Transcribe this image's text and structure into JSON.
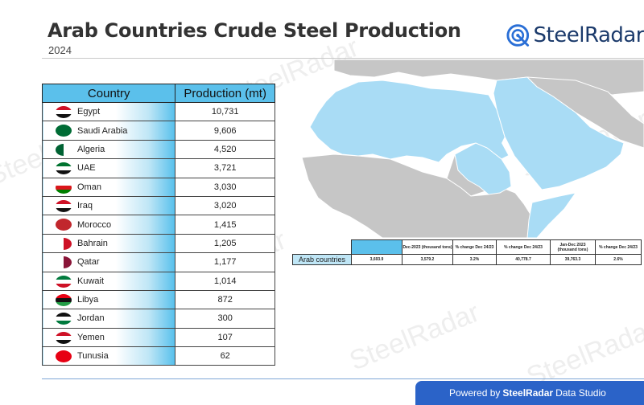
{
  "header": {
    "title": "Arab Countries Crude Steel Production",
    "subtitle": "2024",
    "brand": "SteelRadar",
    "watermark": "SteelRadar"
  },
  "table": {
    "col_country": "Country",
    "col_production": "Production (mt)"
  },
  "chart_data": {
    "type": "table",
    "title": "Arab Countries Crude Steel Production",
    "columns": [
      "Country",
      "Production (mt)"
    ],
    "rows": [
      {
        "country": "Egypt",
        "production": "10,731",
        "flag": "egypt-flag-icon"
      },
      {
        "country": "Saudi Arabia",
        "production": "9,606",
        "flag": "saudi-arabia-flag-icon"
      },
      {
        "country": "Algeria",
        "production": "4,520",
        "flag": "algeria-flag-icon"
      },
      {
        "country": "UAE",
        "production": "3,721",
        "flag": "uae-flag-icon"
      },
      {
        "country": "Oman",
        "production": "3,030",
        "flag": "oman-flag-icon"
      },
      {
        "country": "Iraq",
        "production": "3,020",
        "flag": "iraq-flag-icon"
      },
      {
        "country": "Morocco",
        "production": "1,415",
        "flag": "morocco-flag-icon"
      },
      {
        "country": "Bahrain",
        "production": "1,205",
        "flag": "bahrain-flag-icon"
      },
      {
        "country": "Qatar",
        "production": "1,177",
        "flag": "qatar-flag-icon"
      },
      {
        "country": "Kuwait",
        "production": "1,014",
        "flag": "kuwait-flag-icon"
      },
      {
        "country": "Libya",
        "production": "872",
        "flag": "libya-flag-icon"
      },
      {
        "country": "Jordan",
        "production": "300",
        "flag": "jordan-flag-icon"
      },
      {
        "country": "Yemen",
        "production": "107",
        "flag": "yemen-flag-icon"
      },
      {
        "country": "Tunusia",
        "production": "62",
        "flag": "tunisia-flag-icon"
      }
    ]
  },
  "summary": {
    "headers": [
      "",
      "Dec-2023 (thousand tons)",
      "% change Dec 24/23",
      "% change Dec 24/23",
      "Jan-Dec 2023 (thousand tons)",
      "% change Dec 24/23"
    ],
    "row_label": "Arab countries",
    "values": [
      "3,693.9",
      "3,579.2",
      "3.2%",
      "40,778.7",
      "39,763.3",
      "2.6%"
    ]
  },
  "map": {
    "highlight_color": "#a9dcf5",
    "land_color": "#c6c6c6",
    "border_color": "#ffffff"
  },
  "footer": {
    "prefix": "Powered by",
    "brand": "SteelRadar",
    "suffix": "Data Studio"
  },
  "colors": {
    "accent": "#5bc0eb",
    "brand": "#1b3a6b",
    "footer": "#2b63c8"
  }
}
